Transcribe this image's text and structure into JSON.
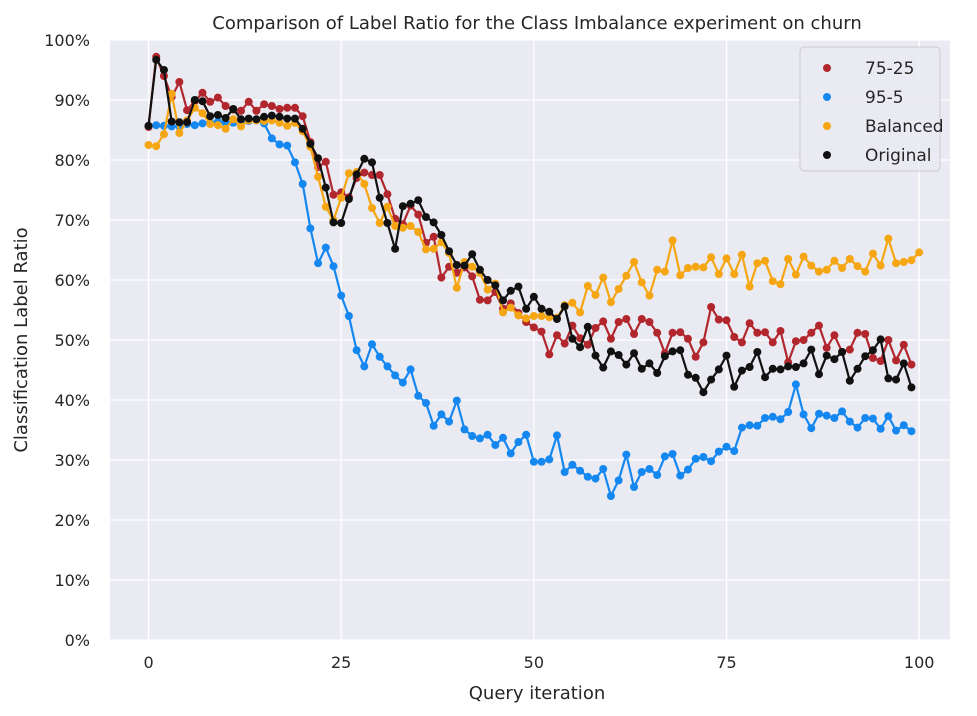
{
  "chart_data": {
    "type": "line",
    "title": "Comparison of Label Ratio for the Class Imbalance experiment on churn",
    "xlabel": "Query iteration",
    "ylabel": "Classification Label Ratio",
    "xlim": [
      -5,
      104
    ],
    "ylim": [
      0,
      1
    ],
    "xticks": [
      0,
      25,
      50,
      75,
      100
    ],
    "yticks": [
      0,
      0.1,
      0.2,
      0.3,
      0.4,
      0.5,
      0.6,
      0.7,
      0.8,
      0.9,
      1.0
    ],
    "ytick_labels": [
      "0%",
      "10%",
      "20%",
      "30%",
      "40%",
      "50%",
      "60%",
      "70%",
      "80%",
      "90%",
      "100%"
    ],
    "xtick_labels": [
      "0",
      "25",
      "50",
      "75",
      "100"
    ],
    "grid": true,
    "legend_position": "top-right",
    "background_color": "#eaeaf2",
    "series": [
      {
        "name": "75-25",
        "color": "#b2262d",
        "values": [
          0.855,
          0.972,
          0.94,
          0.905,
          0.93,
          0.883,
          0.898,
          0.912,
          0.897,
          0.904,
          0.89,
          0.884,
          0.882,
          0.897,
          0.882,
          0.893,
          0.89,
          0.885,
          0.887,
          0.887,
          0.873,
          0.83,
          0.788,
          0.797,
          0.742,
          0.746,
          0.738,
          0.77,
          0.779,
          0.775,
          0.775,
          0.743,
          0.702,
          0.693,
          0.724,
          0.709,
          0.662,
          0.672,
          0.604,
          0.622,
          0.612,
          0.621,
          0.606,
          0.567,
          0.566,
          0.58,
          0.552,
          0.561,
          0.545,
          0.53,
          0.521,
          0.514,
          0.476,
          0.508,
          0.494,
          0.524,
          0.503,
          0.492,
          0.52,
          0.531,
          0.502,
          0.53,
          0.535,
          0.51,
          0.535,
          0.53,
          0.512,
          0.478,
          0.512,
          0.513,
          0.502,
          0.472,
          0.496,
          0.555,
          0.534,
          0.533,
          0.505,
          0.496,
          0.528,
          0.512,
          0.513,
          0.496,
          0.515,
          0.463,
          0.498,
          0.5,
          0.512,
          0.524,
          0.487,
          0.508,
          0.48,
          0.484,
          0.512,
          0.51,
          0.47,
          0.465,
          0.5,
          0.466,
          0.492,
          0.459
        ]
      },
      {
        "name": "95-5",
        "color": "#1587f0",
        "values": [
          0.857,
          0.858,
          0.857,
          0.856,
          0.856,
          0.86,
          0.858,
          0.861,
          0.862,
          0.864,
          0.862,
          0.862,
          0.864,
          0.865,
          0.866,
          0.861,
          0.836,
          0.826,
          0.824,
          0.796,
          0.76,
          0.686,
          0.628,
          0.654,
          0.623,
          0.574,
          0.54,
          0.483,
          0.456,
          0.493,
          0.472,
          0.456,
          0.441,
          0.429,
          0.451,
          0.407,
          0.395,
          0.357,
          0.376,
          0.364,
          0.399,
          0.351,
          0.34,
          0.336,
          0.342,
          0.325,
          0.337,
          0.311,
          0.33,
          0.342,
          0.297,
          0.297,
          0.301,
          0.341,
          0.28,
          0.292,
          0.282,
          0.272,
          0.269,
          0.285,
          0.24,
          0.266,
          0.309,
          0.255,
          0.28,
          0.285,
          0.275,
          0.306,
          0.31,
          0.274,
          0.284,
          0.302,
          0.305,
          0.298,
          0.314,
          0.322,
          0.315,
          0.354,
          0.358,
          0.357,
          0.37,
          0.372,
          0.368,
          0.38,
          0.426,
          0.376,
          0.353,
          0.377,
          0.374,
          0.37,
          0.381,
          0.364,
          0.354,
          0.37,
          0.369,
          0.352,
          0.373,
          0.349,
          0.358,
          0.348
        ]
      },
      {
        "name": "Balanced",
        "color": "#f5a612",
        "values": [
          0.825,
          0.823,
          0.843,
          0.91,
          0.845,
          0.866,
          0.887,
          0.878,
          0.86,
          0.858,
          0.852,
          0.868,
          0.856,
          0.866,
          0.866,
          0.865,
          0.866,
          0.862,
          0.857,
          0.862,
          0.848,
          0.822,
          0.772,
          0.722,
          0.7,
          0.737,
          0.778,
          0.78,
          0.76,
          0.72,
          0.695,
          0.722,
          0.69,
          0.687,
          0.69,
          0.68,
          0.651,
          0.652,
          0.663,
          0.645,
          0.587,
          0.63,
          0.622,
          0.612,
          0.584,
          0.594,
          0.546,
          0.554,
          0.541,
          0.536,
          0.54,
          0.54,
          0.538,
          0.537,
          0.558,
          0.562,
          0.546,
          0.59,
          0.575,
          0.604,
          0.563,
          0.585,
          0.607,
          0.63,
          0.596,
          0.574,
          0.617,
          0.614,
          0.666,
          0.608,
          0.62,
          0.622,
          0.621,
          0.638,
          0.61,
          0.636,
          0.61,
          0.642,
          0.589,
          0.628,
          0.632,
          0.598,
          0.593,
          0.635,
          0.609,
          0.639,
          0.624,
          0.614,
          0.617,
          0.632,
          0.62,
          0.635,
          0.623,
          0.614,
          0.644,
          0.624,
          0.669,
          0.628,
          0.63,
          0.633,
          0.646
        ]
      },
      {
        "name": "Original",
        "color": "#111111",
        "values": [
          0.857,
          0.967,
          0.95,
          0.864,
          0.863,
          0.863,
          0.9,
          0.898,
          0.873,
          0.875,
          0.87,
          0.885,
          0.868,
          0.869,
          0.868,
          0.872,
          0.874,
          0.872,
          0.869,
          0.869,
          0.852,
          0.827,
          0.803,
          0.754,
          0.696,
          0.695,
          0.735,
          0.776,
          0.802,
          0.796,
          0.737,
          0.695,
          0.652,
          0.723,
          0.727,
          0.733,
          0.705,
          0.696,
          0.675,
          0.648,
          0.625,
          0.624,
          0.643,
          0.617,
          0.6,
          0.591,
          0.566,
          0.582,
          0.589,
          0.552,
          0.572,
          0.552,
          0.547,
          0.535,
          0.556,
          0.502,
          0.488,
          0.522,
          0.474,
          0.454,
          0.481,
          0.475,
          0.459,
          0.478,
          0.452,
          0.461,
          0.445,
          0.473,
          0.481,
          0.483,
          0.442,
          0.437,
          0.413,
          0.434,
          0.451,
          0.474,
          0.422,
          0.449,
          0.455,
          0.48,
          0.438,
          0.452,
          0.451,
          0.456,
          0.455,
          0.461,
          0.484,
          0.443,
          0.474,
          0.468,
          0.48,
          0.432,
          0.452,
          0.473,
          0.483,
          0.501,
          0.436,
          0.434,
          0.461,
          0.421
        ]
      }
    ]
  }
}
